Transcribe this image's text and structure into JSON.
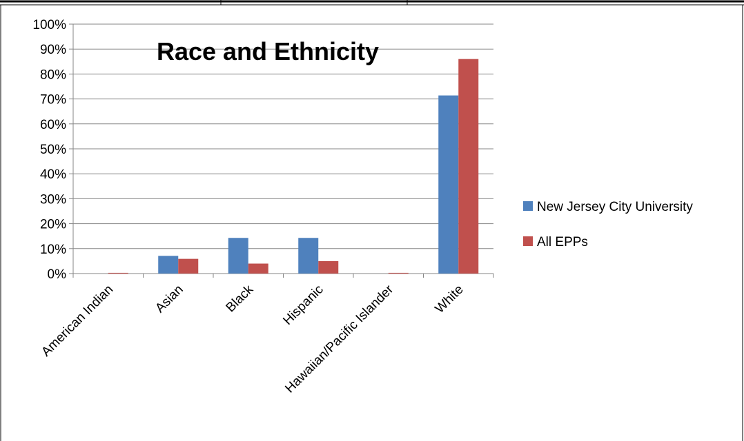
{
  "chart_data": {
    "type": "bar",
    "title": "Race and Ethnicity",
    "xlabel": "",
    "ylabel": "",
    "categories": [
      "American Indian",
      "Asian",
      "Black",
      "Hispanic",
      "Hawaiian/Pacific Islander",
      "White"
    ],
    "series": [
      {
        "name": "New Jersey City University",
        "color": "#4F81BD",
        "values": [
          0,
          7.1,
          14.3,
          14.3,
          0,
          71.4
        ]
      },
      {
        "name": "All EPPs",
        "color": "#C0504D",
        "values": [
          0.3,
          5.9,
          4.0,
          5.0,
          0.3,
          86.0
        ]
      }
    ],
    "ylim": [
      0,
      100
    ],
    "yticks": [
      "0%",
      "10%",
      "20%",
      "30%",
      "40%",
      "50%",
      "60%",
      "70%",
      "80%",
      "90%",
      "100%"
    ],
    "grid": true,
    "legend_position": "right"
  }
}
